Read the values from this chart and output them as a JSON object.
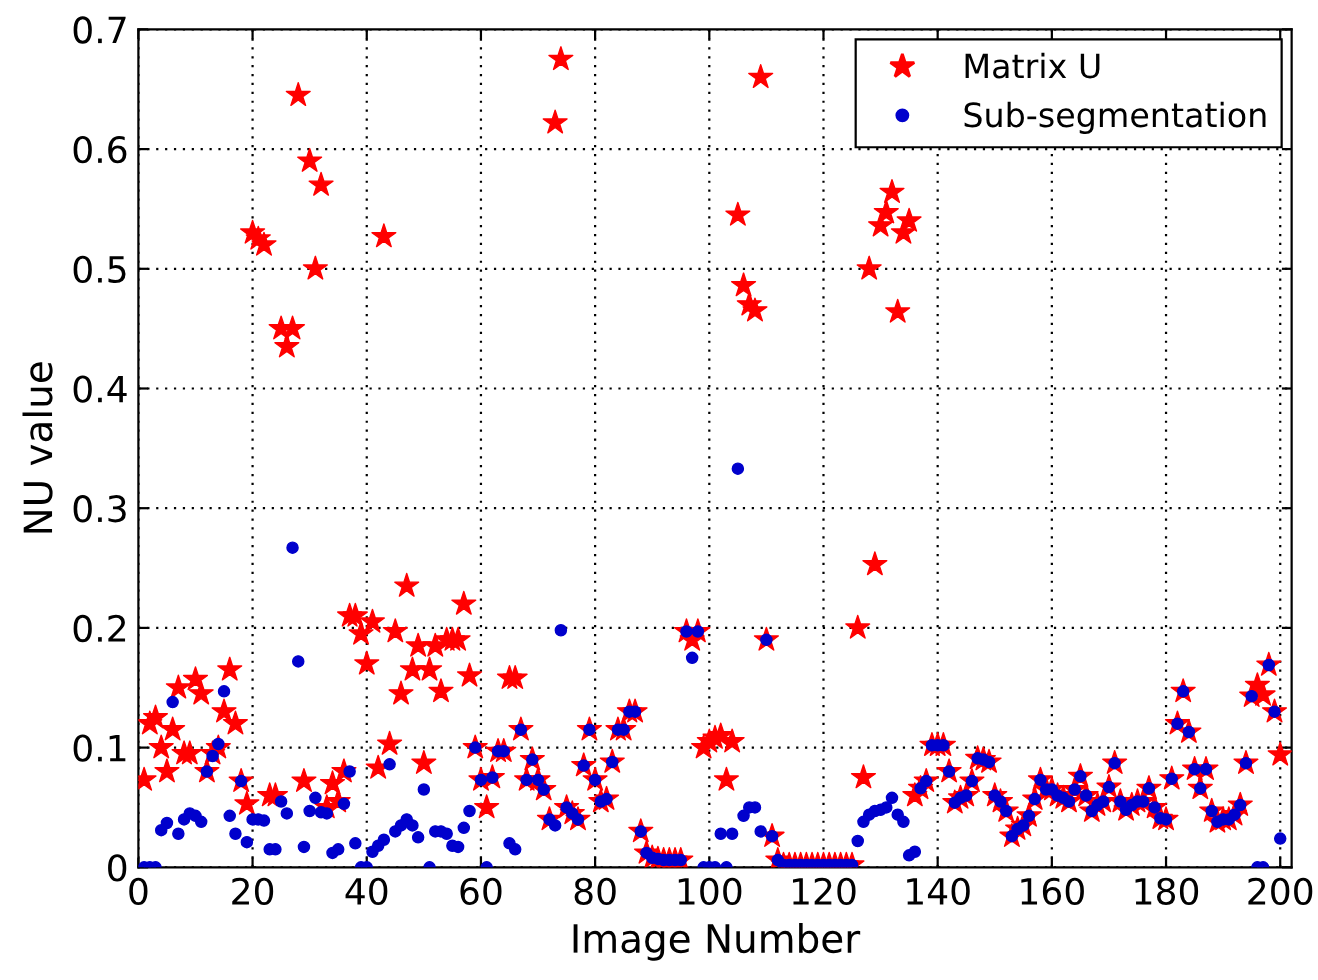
{
  "chart_data": {
    "type": "scatter",
    "xlabel": "Image Number",
    "ylabel": "NU value",
    "x": [
      1,
      2,
      3,
      4,
      5,
      6,
      7,
      8,
      9,
      10,
      11,
      12,
      13,
      14,
      15,
      16,
      17,
      18,
      19,
      20,
      21,
      22,
      23,
      24,
      25,
      26,
      27,
      28,
      29,
      30,
      31,
      32,
      33,
      34,
      35,
      36,
      37,
      38,
      39,
      40,
      41,
      42,
      43,
      44,
      45,
      46,
      47,
      48,
      49,
      50,
      51,
      52,
      53,
      54,
      55,
      56,
      57,
      58,
      59,
      60,
      61,
      62,
      63,
      64,
      65,
      66,
      67,
      68,
      69,
      70,
      71,
      72,
      73,
      74,
      75,
      76,
      77,
      78,
      79,
      80,
      81,
      82,
      83,
      84,
      85,
      86,
      87,
      88,
      89,
      90,
      91,
      92,
      93,
      94,
      95,
      96,
      97,
      98,
      99,
      100,
      101,
      102,
      103,
      104,
      105,
      106,
      107,
      108,
      109,
      110,
      111,
      112,
      113,
      114,
      115,
      116,
      117,
      118,
      119,
      120,
      121,
      122,
      123,
      124,
      125,
      126,
      127,
      128,
      129,
      130,
      131,
      132,
      133,
      134,
      135,
      136,
      137,
      138,
      139,
      140,
      141,
      142,
      143,
      144,
      145,
      146,
      147,
      148,
      149,
      150,
      151,
      152,
      153,
      154,
      155,
      156,
      157,
      158,
      159,
      160,
      161,
      162,
      163,
      164,
      165,
      166,
      167,
      168,
      169,
      170,
      171,
      172,
      173,
      174,
      175,
      176,
      177,
      178,
      179,
      180,
      181,
      182,
      183,
      184,
      185,
      186,
      187,
      188,
      189,
      190,
      191,
      192,
      193,
      194,
      195,
      196,
      197,
      198,
      199,
      200
    ],
    "series": [
      {
        "name": "Matrix U",
        "color": "#ff0000",
        "marker": "star",
        "values": [
          0.073,
          0.12,
          0.125,
          0.1,
          0.08,
          0.115,
          0.15,
          0.095,
          0.095,
          0.157,
          0.145,
          0.08,
          0.095,
          0.1,
          0.13,
          0.165,
          0.12,
          0.072,
          0.053,
          0.53,
          0.525,
          0.52,
          0.06,
          0.06,
          0.45,
          0.435,
          0.45,
          0.645,
          0.072,
          0.59,
          0.5,
          0.57,
          0.05,
          0.07,
          0.055,
          0.08,
          0.21,
          0.21,
          0.195,
          0.17,
          0.205,
          0.083,
          0.527,
          0.103,
          0.197,
          0.145,
          0.235,
          0.165,
          0.185,
          0.087,
          0.165,
          0.185,
          0.147,
          0.19,
          0.19,
          0.19,
          0.22,
          0.16,
          0.1,
          0.073,
          0.05,
          0.075,
          0.097,
          0.097,
          0.158,
          0.158,
          0.115,
          0.073,
          0.09,
          0.073,
          0.065,
          0.04,
          0.622,
          0.675,
          0.05,
          0.045,
          0.04,
          0.085,
          0.115,
          0.073,
          0.055,
          0.057,
          0.088,
          0.115,
          0.115,
          0.13,
          0.13,
          0.03,
          0.012,
          0.008,
          0.007,
          0.006,
          0.006,
          0.006,
          0.006,
          0.197,
          0.19,
          0.197,
          0.1,
          0.105,
          0.108,
          0.11,
          0.073,
          0.105,
          0.545,
          0.486,
          0.47,
          0.465,
          0.66,
          0.19,
          0.026,
          0.006,
          0.002,
          0.002,
          0.002,
          0.002,
          0.002,
          0.002,
          0.002,
          0.002,
          0.002,
          0.002,
          0.002,
          0.002,
          0.002,
          0.2,
          0.075,
          0.5,
          0.253,
          0.536,
          0.547,
          0.564,
          0.464,
          0.53,
          0.54,
          0.06,
          0.066,
          0.072,
          0.102,
          0.102,
          0.102,
          0.08,
          0.054,
          0.058,
          0.06,
          0.072,
          0.091,
          0.09,
          0.088,
          0.06,
          0.055,
          0.047,
          0.026,
          0.032,
          0.035,
          0.043,
          0.057,
          0.073,
          0.065,
          0.065,
          0.06,
          0.058,
          0.055,
          0.065,
          0.076,
          0.06,
          0.047,
          0.052,
          0.055,
          0.067,
          0.087,
          0.055,
          0.048,
          0.052,
          0.055,
          0.055,
          0.066,
          0.05,
          0.041,
          0.04,
          0.074,
          0.12,
          0.147,
          0.113,
          0.082,
          0.066,
          0.082,
          0.047,
          0.038,
          0.04,
          0.04,
          0.044,
          0.052,
          0.087,
          0.143,
          0.152,
          0.144,
          0.169,
          0.13,
          0.094
        ]
      },
      {
        "name": "Sub-segmentation",
        "color": "#0000cc",
        "marker": "circle",
        "values": [
          0,
          0,
          0,
          0.031,
          0.037,
          0.138,
          0.028,
          0.04,
          0.045,
          0.043,
          0.038,
          0.08,
          0.093,
          0.103,
          0.147,
          0.043,
          0.028,
          0.072,
          0.021,
          0.04,
          0.04,
          0.039,
          0.015,
          0.015,
          0.055,
          0.045,
          0.267,
          0.172,
          0.017,
          0.047,
          0.058,
          0.046,
          0.045,
          0.012,
          0.015,
          0.053,
          0.08,
          0.02,
          0,
          0,
          0.013,
          0.018,
          0.023,
          0.086,
          0.03,
          0.035,
          0.04,
          0.035,
          0.025,
          0.065,
          0,
          0.03,
          0.03,
          0.028,
          0.018,
          0.017,
          0.033,
          0.047,
          0.1,
          0.073,
          0,
          0.075,
          0.097,
          0.097,
          0.02,
          0.015,
          0.115,
          0.073,
          0.09,
          0.073,
          0.065,
          0.04,
          0.035,
          0.198,
          0.05,
          0.045,
          0.04,
          0.085,
          0.115,
          0.073,
          0.055,
          0.057,
          0.088,
          0.115,
          0.115,
          0.13,
          0.13,
          0.03,
          0.012,
          0.008,
          0.007,
          0.006,
          0.006,
          0.006,
          0.006,
          0.197,
          0.175,
          0.197,
          0,
          0,
          0,
          0.028,
          0,
          0.028,
          0.333,
          0.043,
          0.05,
          0.05,
          0.03,
          0.19,
          0.026,
          0.006,
          0.002,
          0.002,
          0.002,
          0.002,
          0.002,
          0.002,
          0.002,
          0.002,
          0.002,
          0.002,
          0.002,
          0.002,
          0.002,
          0.022,
          0.038,
          0.044,
          0.047,
          0.048,
          0.05,
          0.058,
          0.044,
          0.038,
          0.01,
          0.013,
          0.066,
          0.072,
          0.102,
          0.102,
          0.102,
          0.08,
          0.054,
          0.058,
          0.06,
          0.072,
          0.091,
          0.09,
          0.088,
          0.06,
          0.055,
          0.047,
          0.026,
          0.032,
          0.035,
          0.043,
          0.057,
          0.073,
          0.065,
          0.065,
          0.06,
          0.058,
          0.055,
          0.065,
          0.076,
          0.06,
          0.047,
          0.052,
          0.055,
          0.067,
          0.087,
          0.055,
          0.048,
          0.052,
          0.055,
          0.055,
          0.066,
          0.05,
          0.041,
          0.04,
          0.074,
          0.12,
          0.147,
          0.113,
          0.082,
          0.066,
          0.082,
          0.047,
          0.038,
          0.04,
          0.04,
          0.044,
          0.052,
          0.087,
          0.143,
          0,
          0,
          0.169,
          0.13,
          0.024
        ]
      }
    ],
    "xlim": [
      0,
      202
    ],
    "ylim": [
      0,
      0.7
    ],
    "xticks": [
      0,
      20,
      40,
      60,
      80,
      100,
      120,
      140,
      160,
      180,
      200
    ],
    "yticks": [
      0,
      0.1,
      0.2,
      0.3,
      0.4,
      0.5,
      0.6,
      0.7
    ],
    "grid": true,
    "legend": "top right"
  }
}
